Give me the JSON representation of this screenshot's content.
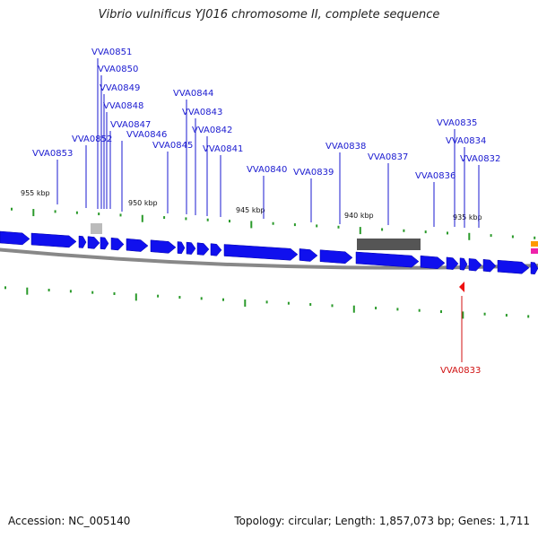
{
  "title": "Vibrio vulnificus YJ016 chromosome II, complete sequence",
  "footer": {
    "accession": "Accession: NC_005140",
    "topology": "Topology: circular; Length: 1,857,073 bp; Genes: 1,711"
  },
  "colors": {
    "forward_gene": "#1010ee",
    "reverse_gene": "#ee1010",
    "label_forward": "#1a1ad0",
    "label_reverse": "#d01010",
    "tick": "#2a9a2a",
    "backbone": "#888888",
    "grey_feature": "#555555"
  },
  "kbp_labels": [
    "955 kbp",
    "950 kbp",
    "945 kbp",
    "940 kbp",
    "935 kbp"
  ],
  "genes_forward": [
    "VVA0853",
    "VVA0852",
    "VVA0851",
    "VVA0850",
    "VVA0849",
    "VVA0848",
    "VVA0847",
    "VVA0846",
    "VVA0845",
    "VVA0844",
    "VVA0843",
    "VVA0842",
    "VVA0841",
    "VVA0840",
    "VVA0839",
    "VVA0838",
    "VVA0837",
    "VVA0836",
    "VVA0835",
    "VVA0834",
    "VVA0832"
  ],
  "genes_reverse": [
    "VVA0833"
  ]
}
